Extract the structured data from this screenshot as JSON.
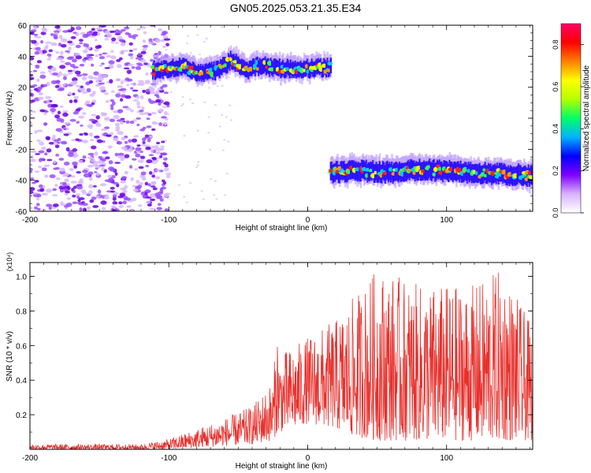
{
  "title": "GN05.2025.053.21.35.E34",
  "chart_data": [
    {
      "type": "heatmap",
      "name": "spectrogram",
      "xlabel": "Height of straight line (km)",
      "ylabel": "Frequency (Hz)",
      "xlim": [
        -200,
        162
      ],
      "ylim": [
        -60,
        60
      ],
      "xticks": [
        "-200",
        "-100",
        "0",
        "100"
      ],
      "xtick_values": [
        -200,
        -100,
        0,
        100
      ],
      "yticks": [
        "60",
        "40",
        "20",
        "0",
        "-20",
        "-40",
        "-60"
      ],
      "ytick_values": [
        60,
        40,
        20,
        0,
        -20,
        -40,
        -60
      ],
      "colorbar": {
        "label": "Normalized spectral amplitude",
        "range": [
          0,
          0.9
        ],
        "ticks": [
          "0.0",
          "0.2",
          "0.4",
          "0.6",
          "0.8"
        ],
        "tick_values": [
          0.0,
          0.2,
          0.4,
          0.6,
          0.8
        ],
        "colors": [
          "#ffffff",
          "#d9b3ff",
          "#7f00ff",
          "#0000ff",
          "#00b3ff",
          "#00ff66",
          "#b3ff00",
          "#ffff00",
          "#ff8000",
          "#ff0000",
          "#ff0066"
        ]
      },
      "bands": [
        {
          "description": "upper branch",
          "x_range": [
            -112,
            16
          ],
          "center_freq": 31,
          "width": 10,
          "track": [
            [
              -112,
              31
            ],
            [
              -90,
              33
            ],
            [
              -80,
              29
            ],
            [
              -65,
              31
            ],
            [
              -55,
              38
            ],
            [
              -45,
              31
            ],
            [
              -35,
              34
            ],
            [
              -20,
              32
            ],
            [
              0,
              32
            ],
            [
              16,
              33
            ]
          ]
        },
        {
          "description": "lower branch",
          "x_range": [
            16,
            162
          ],
          "center_freq": -36,
          "width": 12,
          "track": [
            [
              16,
              -35
            ],
            [
              40,
              -34
            ],
            [
              60,
              -35
            ],
            [
              80,
              -33
            ],
            [
              100,
              -34
            ],
            [
              120,
              -35
            ],
            [
              140,
              -36
            ],
            [
              162,
              -37
            ]
          ]
        }
      ],
      "noise_region": {
        "x_range": [
          -200,
          -105
        ],
        "freq_range": [
          -60,
          60
        ]
      }
    },
    {
      "type": "line",
      "name": "snr",
      "xlabel": "Height of straight line (km)",
      "ylabel": "SNR (10 * v/v)",
      "yunit": "(x10⁴)",
      "xlim": [
        -200,
        162
      ],
      "ylim": [
        0,
        1.08
      ],
      "xticks": [
        "-200",
        "-100",
        "0",
        "100"
      ],
      "xtick_values": [
        -200,
        -100,
        0,
        100
      ],
      "yticks": [
        "0.2",
        "0.4",
        "0.6",
        "0.8",
        "1.0"
      ],
      "ytick_values": [
        0.2,
        0.4,
        0.6,
        0.8,
        1.0
      ],
      "color": "#e8302c",
      "envelope": {
        "x": [
          -200,
          -150,
          -120,
          -100,
          -80,
          -60,
          -40,
          -25,
          -22,
          -20,
          -10,
          0,
          20,
          30,
          50,
          80,
          100,
          120,
          140,
          162
        ],
        "low": [
          0.0,
          0.0,
          0.0,
          0.0,
          0.01,
          0.02,
          0.03,
          0.05,
          0.1,
          0.1,
          0.12,
          0.15,
          0.12,
          0.08,
          0.05,
          0.05,
          0.05,
          0.05,
          0.05,
          0.05
        ],
        "high": [
          0.03,
          0.03,
          0.03,
          0.06,
          0.12,
          0.18,
          0.25,
          0.4,
          0.72,
          0.55,
          0.6,
          0.65,
          0.75,
          0.85,
          1.05,
          0.95,
          0.95,
          0.95,
          1.05,
          0.7
        ]
      }
    }
  ]
}
